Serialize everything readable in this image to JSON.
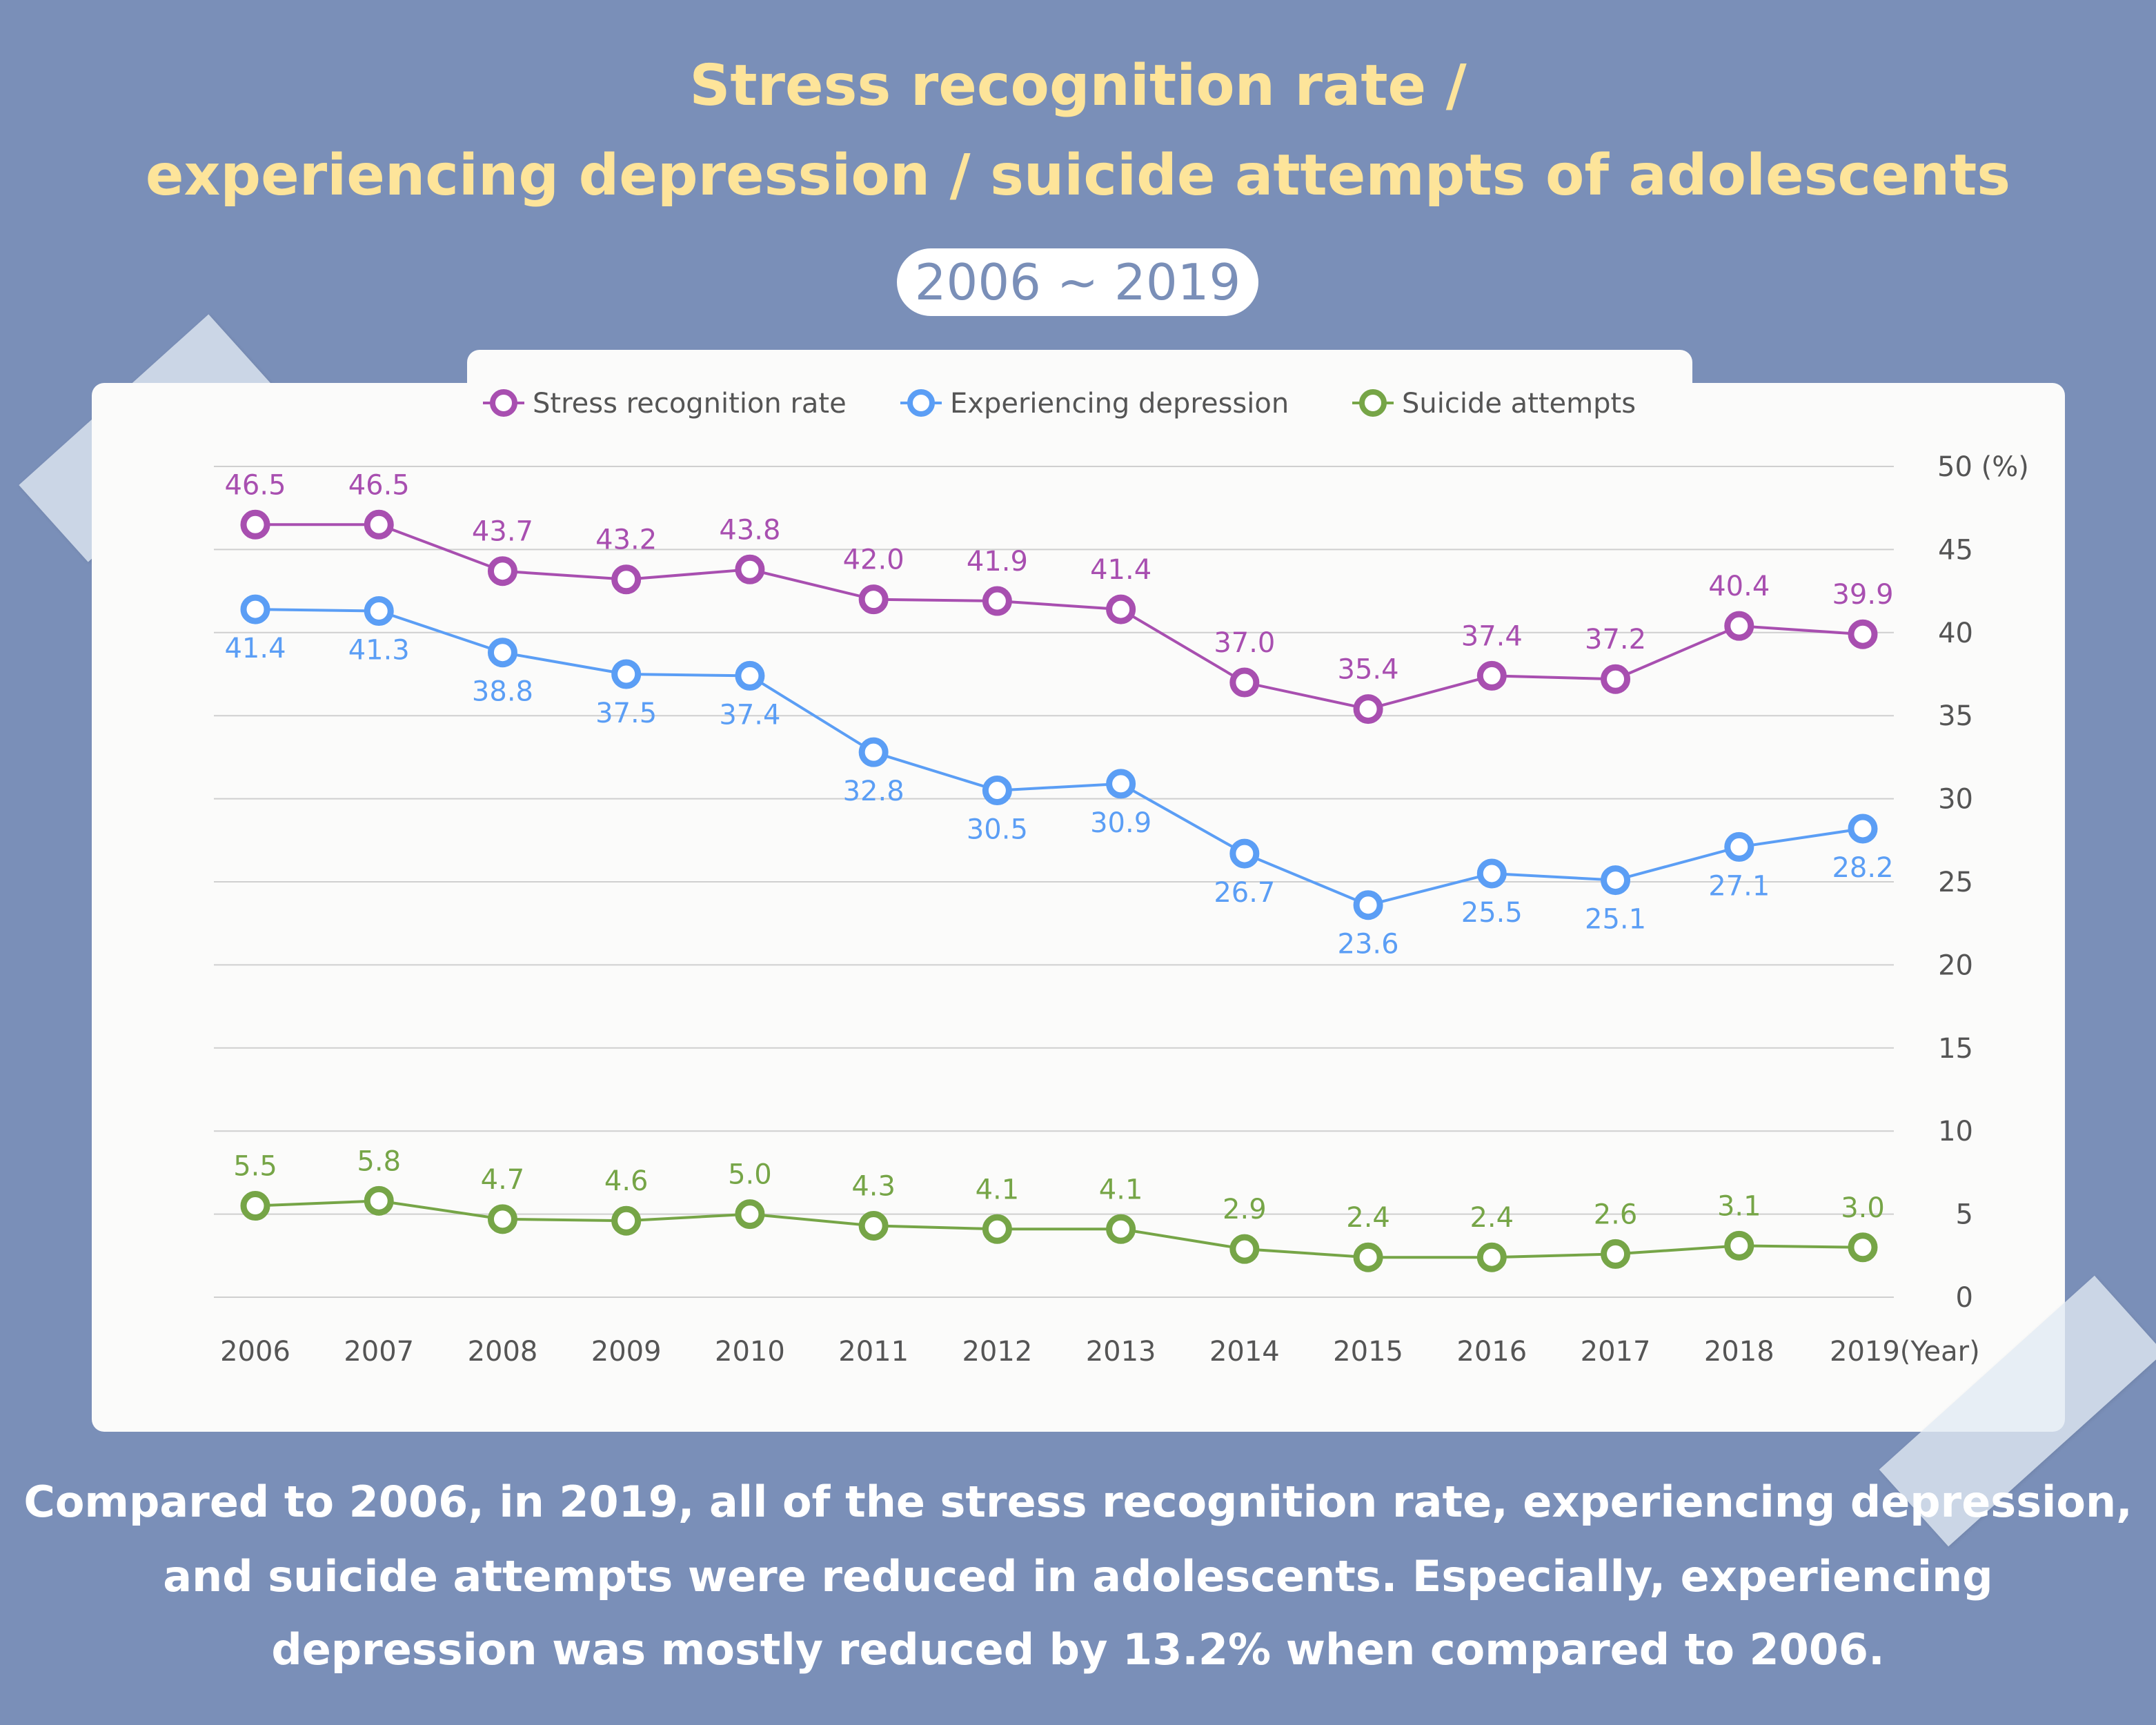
{
  "header": {
    "title_line1": "Stress recognition rate /",
    "title_line2": "experiencing depression / suicide attempts of adolescents",
    "period": "2006 ~ 2019"
  },
  "summary": {
    "line1": "Compared to 2006, in 2019, all of the stress recognition rate, experiencing depression,",
    "line2": "and suicide attempts were reduced in adolescents. Especially, experiencing",
    "line3": "depression was mostly reduced by 13.2% when compared to 2006."
  },
  "colors": {
    "background": "#7a8fb8",
    "title": "#fde49a",
    "stress": "#a84fb0",
    "depression": "#5b9ef5",
    "suicide": "#76a547",
    "grid": "#cfcfcf",
    "axis_text": "#555555"
  },
  "chart_data": {
    "type": "line",
    "title": "Stress recognition rate / experiencing depression / suicide attempts of adolescents",
    "subtitle": "2006 ~ 2019",
    "xlabel": "(Year)",
    "ylabel": "(%)",
    "x": [
      "2006",
      "2007",
      "2008",
      "2009",
      "2010",
      "2011",
      "2012",
      "2013",
      "2014",
      "2015",
      "2016",
      "2017",
      "2018",
      "2019"
    ],
    "x_axis_suffix": "(Year)",
    "y_ticks": [
      0,
      5,
      10,
      15,
      20,
      25,
      30,
      35,
      40,
      45,
      50
    ],
    "y_top_label": "50 (%)",
    "ylim": [
      0,
      50
    ],
    "y_axis_side": "right",
    "grid": true,
    "legend_position": "top-center",
    "series": [
      {
        "name": "Stress recognition rate",
        "key": "stress",
        "label_position": "above",
        "values": [
          46.5,
          46.5,
          43.7,
          43.2,
          43.8,
          42.0,
          41.9,
          41.4,
          37.0,
          35.4,
          37.4,
          37.2,
          40.4,
          39.9
        ],
        "labels": [
          "46.5",
          "46.5",
          "43.7",
          "43.2",
          "43.8",
          "42.0",
          "41.9",
          "41.4",
          "37.0",
          "35.4",
          "37.4",
          "37.2",
          "40.4",
          "39.9"
        ]
      },
      {
        "name": "Experiencing depression",
        "key": "depression",
        "label_position": "below",
        "values": [
          41.4,
          41.3,
          38.8,
          37.5,
          37.4,
          32.8,
          30.5,
          30.9,
          26.7,
          23.6,
          25.5,
          25.1,
          27.1,
          28.2
        ],
        "labels": [
          "41.4",
          "41.3",
          "38.8",
          "37.5",
          "37.4",
          "32.8",
          "30.5",
          "30.9",
          "26.7",
          "23.6",
          "25.5",
          "25.1",
          "27.1",
          "28.2"
        ]
      },
      {
        "name": "Suicide attempts",
        "key": "suicide",
        "label_position": "above",
        "values": [
          5.5,
          5.8,
          4.7,
          4.6,
          5.0,
          4.3,
          4.1,
          4.1,
          2.9,
          2.4,
          2.4,
          2.6,
          3.1,
          3.0
        ],
        "labels": [
          "5.5",
          "5.8",
          "4.7",
          "4.6",
          "5.0",
          "4.3",
          "4.1",
          "4.1",
          "2.9",
          "2.4",
          "2.4",
          "2.6",
          "3.1",
          "3.0"
        ]
      }
    ]
  }
}
